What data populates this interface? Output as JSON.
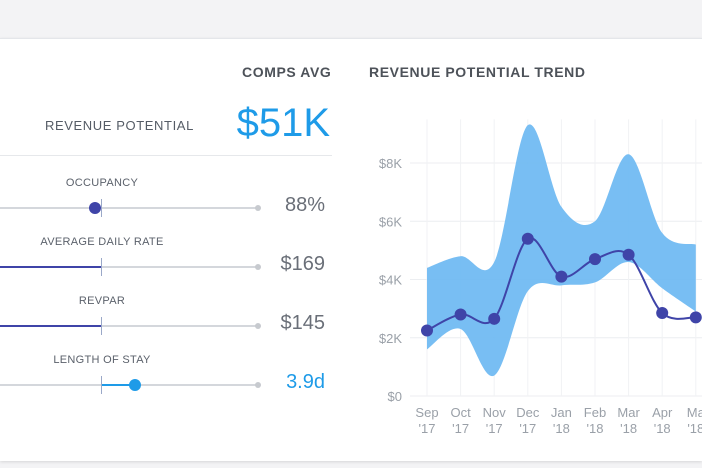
{
  "panel": {
    "comps_heading": "COMPS AVG",
    "trend_heading": "REVENUE POTENTIAL TREND",
    "revenue_label": "REVENUE POTENTIAL",
    "revenue_value": "$51K"
  },
  "metrics": [
    {
      "label": "OCCUPANCY",
      "value": "88%",
      "accent": false,
      "slider_fraction": 0.36
    },
    {
      "label": "AVERAGE DAILY RATE",
      "value": "$169",
      "accent": false,
      "slider_fraction": 0.39
    },
    {
      "label": "REVPAR",
      "value": "$145",
      "accent": false,
      "slider_fraction": 0.39
    },
    {
      "label": "LENGTH OF STAY",
      "value": "3.9d",
      "accent": true,
      "slider_fraction": 0.52
    }
  ],
  "colors": {
    "accent": "#1e9be8",
    "series_line": "#3f44a8",
    "band": "#6cb8f2"
  },
  "chart_data": {
    "type": "line",
    "categories": [
      "Sep '17",
      "Oct '17",
      "Nov '17",
      "Dec '17",
      "Jan '18",
      "Feb '18",
      "Mar '18",
      "Apr '18",
      "Ma '18"
    ],
    "x_labels_top": [
      "Sep",
      "Oct",
      "Nov",
      "Dec",
      "Jan",
      "Feb",
      "Mar",
      "Apr",
      "Ma"
    ],
    "x_labels_bottom": [
      "'17",
      "'17",
      "'17",
      "'17",
      "'18",
      "'18",
      "'18",
      "'18",
      "'18"
    ],
    "series": [
      {
        "values": [
          2250,
          2800,
          2650,
          5400,
          4100,
          4700,
          4850,
          2850,
          2700
        ]
      }
    ],
    "band": {
      "upper": [
        4400,
        4800,
        4600,
        9300,
        6500,
        6000,
        8300,
        5600,
        5200
      ],
      "lower": [
        1600,
        2300,
        700,
        3600,
        3800,
        3900,
        4600,
        3700,
        2900
      ]
    },
    "y_ticks": [
      "$0",
      "$2K",
      "$4K",
      "$6K",
      "$8K"
    ],
    "y_tick_values": [
      0,
      2000,
      4000,
      6000,
      8000
    ],
    "ylim": [
      0,
      9500
    ],
    "grid": true
  }
}
